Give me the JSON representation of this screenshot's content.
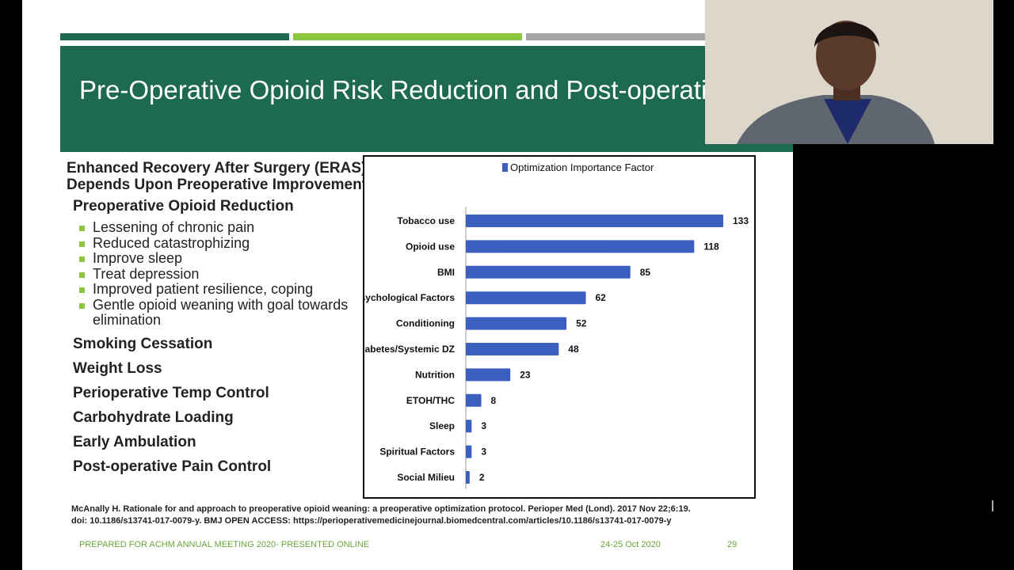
{
  "slide": {
    "title": "Pre-Operative Opioid Risk Reduction and Post-operative Enhanced Recovery After Surgery Program",
    "left_heading": "Enhanced Recovery After Surgery (ERAS) Depends Upon Preoperative Improvement",
    "subheading": "Preoperative Opioid Reduction",
    "bullets": [
      "Lessening of chronic pain",
      "Reduced catastrophizing",
      "Improve sleep",
      "Treat depression",
      "Improved patient resilience, coping",
      "Gentle opioid weaning with goal towards elimination"
    ],
    "topics": [
      "Smoking Cessation",
      "Weight Loss",
      "Perioperative Temp Control",
      "Carbohydrate Loading",
      "Early Ambulation",
      "Post-operative Pain Control"
    ],
    "citation_line1": "McAnally H.  Rationale for and approach to preoperative opioid weaning: a preoperative optimization protocol. Perioper Med (Lond). 2017 Nov 22;6:19.",
    "citation_line2": "doi: 10.1186/s13741-017-0079-y. BMJ OPEN ACCESS: https://perioperativemedicinejournal.biomedcentral.com/articles/10.1186/s13741-017-0079-y",
    "footer_left": "PREPARED FOR ACHM ANNUAL MEETING 2020- PRESENTED ONLINE",
    "footer_date": "24-25 Oct 2020",
    "page_number": "29"
  },
  "colors": {
    "title_band": "#1e6a4e",
    "bar_dark_green": "#1e6a4e",
    "bar_light_green": "#8cc63f",
    "bar_gray": "#a6a6a6",
    "bullet": "#8cc63f",
    "bar_fill": "#3a5fbf",
    "footer_text": "#6aa33a"
  },
  "webcam": {
    "description_icon": "presenter-video"
  },
  "chart_data": {
    "type": "bar",
    "orientation": "horizontal",
    "title": "",
    "xlabel": "",
    "ylabel": "",
    "categories": [
      "Tobacco use",
      "Opioid use",
      "BMI",
      "Psychological Factors",
      "Conditioning",
      "Diabetes/Systemic DZ",
      "Nutrition",
      "ETOH/THC",
      "Sleep",
      "Spiritual Factors",
      "Social Milieu"
    ],
    "series": [
      {
        "name": "Optimization Importance Factor",
        "values": [
          133,
          118,
          85,
          62,
          52,
          48,
          23,
          8,
          3,
          3,
          2
        ]
      }
    ],
    "xlim": [
      0,
      133
    ],
    "legend": "top-center",
    "grid": false
  }
}
